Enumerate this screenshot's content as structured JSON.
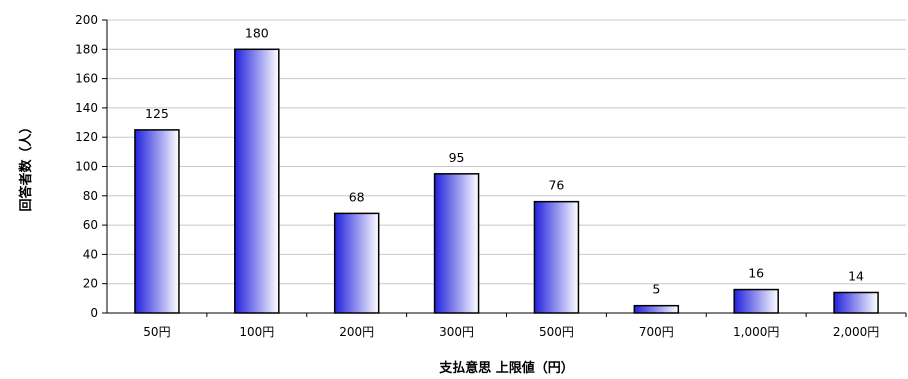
{
  "chart_data": {
    "type": "bar",
    "categories": [
      "50円",
      "100円",
      "200円",
      "300円",
      "500円",
      "700円",
      "1,000円",
      "2,000円"
    ],
    "values": [
      125,
      180,
      68,
      95,
      76,
      5,
      16,
      14
    ],
    "title": "",
    "xlabel": "支払意思 上限値（円）",
    "ylabel": "回答者数（人）",
    "ylim": [
      0,
      200
    ],
    "yticks": [
      0,
      20,
      40,
      60,
      80,
      100,
      120,
      140,
      160,
      180,
      200
    ],
    "grid": true,
    "legend": "none",
    "bar_gradient": [
      "#2222dd",
      "#ffffff"
    ],
    "bar_edge": "#000000",
    "grid_color": "#c8c8c8"
  }
}
